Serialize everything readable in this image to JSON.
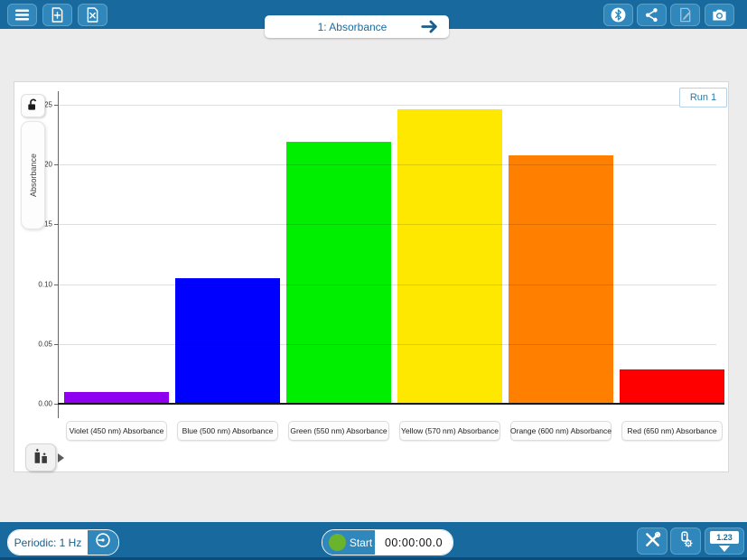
{
  "header": {
    "tab_label": "1: Absorbance"
  },
  "icons": {
    "menu": "hamburger",
    "new_file": "document-plus",
    "close_file": "document-x",
    "bluetooth": "bluetooth-circle",
    "share": "share-nodes",
    "annotate": "document-pen (disabled)",
    "screenshot": "camera",
    "axis_lock": "open-padlock",
    "graph_options": "bar-chart-with-flyout-arrow",
    "collection_settings": "stopwatch-circle",
    "tools": "wrench-screwdriver-cross",
    "sensor_settings": "sensor-gear",
    "meter": "digital-meter-1.23",
    "tab_arrow": "right-arrow"
  },
  "chart_data": {
    "type": "bar",
    "title": "",
    "run_label": "Run 1",
    "ylabel": "Absorbance",
    "xlabel": "",
    "categories": [
      "Violet (450 nm) Absorbance",
      "Blue (500 nm) Absorbance",
      "Green (550 nm) Absorbance",
      "Yellow (570 nm) Absorbance",
      "Orange (600 nm) Absorbance",
      "Red (650 nm) Absorbance"
    ],
    "values": [
      0.01,
      0.105,
      0.219,
      0.246,
      0.208,
      0.029
    ],
    "bar_colors": [
      "#9000F0",
      "#0000FF",
      "#00EE00",
      "#FFE800",
      "#FF7F00",
      "#FF0000"
    ],
    "yticks": [
      0.0,
      0.05,
      0.1,
      0.15,
      0.2,
      0.25
    ],
    "ylim": [
      0,
      0.262
    ],
    "grid": true,
    "legend_position": "top-right"
  },
  "footer": {
    "collection_mode": "Periodic: 1 Hz",
    "start_label": "Start",
    "timer": "00:00:00.0",
    "meter_value": "1.23"
  },
  "colors": {
    "toolbar_bg": "#17699E",
    "toolbar_button_bg": "#2F87BB",
    "accent_text": "#1B6B9E",
    "start_green": "#6AB42D",
    "content_bg": "#EDECEC",
    "bottom_strip": "#0E4C77"
  }
}
